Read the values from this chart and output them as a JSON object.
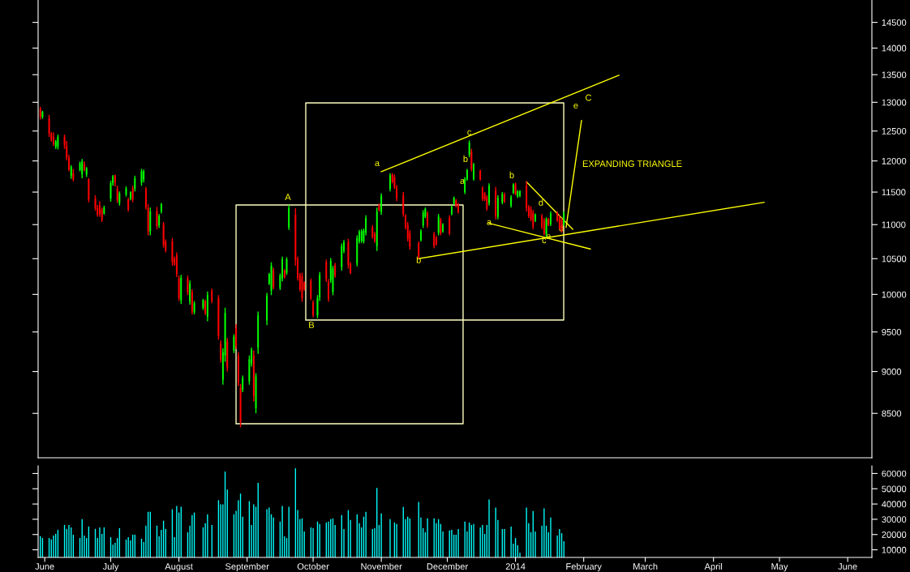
{
  "chart_data": [
    {
      "type": "candlestick",
      "log": true,
      "tick_labels": "y",
      "grid": false,
      "xlim": [
        "2013-05-29",
        "2014-06-12"
      ],
      "ylim": [
        8000,
        14950
      ],
      "yticks": [
        8500,
        9000,
        9500,
        10000,
        10500,
        11000,
        11500,
        12000,
        12500,
        13000,
        13500,
        14000,
        14500
      ],
      "x": [
        "2013-05-30",
        "2013-05-31",
        "2013-06-03",
        "2013-06-04",
        "2013-06-05",
        "2013-06-06",
        "2013-06-07",
        "2013-06-10",
        "2013-06-11",
        "2013-06-12",
        "2013-06-13",
        "2013-06-14",
        "2013-06-17",
        "2013-06-18",
        "2013-06-19",
        "2013-06-20",
        "2013-06-21",
        "2013-06-24",
        "2013-06-25",
        "2013-06-26",
        "2013-06-27",
        "2013-06-28",
        "2013-07-01",
        "2013-07-02",
        "2013-07-03",
        "2013-07-04",
        "2013-07-05",
        "2013-07-08",
        "2013-07-09",
        "2013-07-10",
        "2013-07-11",
        "2013-07-12",
        "2013-07-15",
        "2013-07-16",
        "2013-07-17",
        "2013-07-18",
        "2013-07-19",
        "2013-07-22",
        "2013-07-23",
        "2013-07-24",
        "2013-07-25",
        "2013-07-26",
        "2013-07-29",
        "2013-07-30",
        "2013-07-31",
        "2013-08-01",
        "2013-08-02",
        "2013-08-05",
        "2013-08-06",
        "2013-08-07",
        "2013-08-08",
        "2013-08-12",
        "2013-08-13",
        "2013-08-14",
        "2013-08-16",
        "2013-08-19",
        "2013-08-20",
        "2013-08-21",
        "2013-08-22",
        "2013-08-23",
        "2013-08-26",
        "2013-08-27",
        "2013-08-28",
        "2013-08-29",
        "2013-08-30",
        "2013-09-02",
        "2013-09-03",
        "2013-09-04",
        "2013-09-05",
        "2013-09-06",
        "2013-09-10",
        "2013-09-11",
        "2013-09-12",
        "2013-09-13",
        "2013-09-16",
        "2013-09-17",
        "2013-09-18",
        "2013-09-19",
        "2013-09-20",
        "2013-09-23",
        "2013-09-24",
        "2013-09-25",
        "2013-09-26",
        "2013-09-27",
        "2013-09-30",
        "2013-10-01",
        "2013-10-03",
        "2013-10-04",
        "2013-10-07",
        "2013-10-08",
        "2013-10-09",
        "2013-10-10",
        "2013-10-11",
        "2013-10-14",
        "2013-10-15",
        "2013-10-17",
        "2013-10-18",
        "2013-10-21",
        "2013-10-22",
        "2013-10-23",
        "2013-10-24",
        "2013-10-25",
        "2013-10-28",
        "2013-10-29",
        "2013-10-30",
        "2013-10-31",
        "2013-11-01",
        "2013-11-05",
        "2013-11-06",
        "2013-11-07",
        "2013-11-08",
        "2013-11-11",
        "2013-11-12",
        "2013-11-13",
        "2013-11-14",
        "2013-11-18",
        "2013-11-19",
        "2013-11-20",
        "2013-11-21",
        "2013-11-22",
        "2013-11-25",
        "2013-11-26",
        "2013-11-27",
        "2013-11-28",
        "2013-11-29",
        "2013-12-02",
        "2013-12-03",
        "2013-12-04",
        "2013-12-05",
        "2013-12-06",
        "2013-12-09",
        "2013-12-10",
        "2013-12-11",
        "2013-12-12",
        "2013-12-13",
        "2013-12-16",
        "2013-12-17",
        "2013-12-18",
        "2013-12-19",
        "2013-12-20",
        "2013-12-23",
        "2013-12-24",
        "2013-12-26",
        "2013-12-27",
        "2013-12-30",
        "2013-12-31",
        "2014-01-01",
        "2014-01-02",
        "2014-01-03",
        "2014-01-06",
        "2014-01-07",
        "2014-01-08",
        "2014-01-09",
        "2014-01-10",
        "2014-01-13",
        "2014-01-14",
        "2014-01-15",
        "2014-01-16",
        "2014-01-17",
        "2014-01-20",
        "2014-01-21",
        "2014-01-22",
        "2014-01-23"
      ],
      "ohlc": [
        [
          12880,
          12920,
          12700,
          12750
        ],
        [
          12740,
          12850,
          12710,
          12830
        ],
        [
          12720,
          12780,
          12400,
          12460
        ],
        [
          12460,
          12480,
          12320,
          12350
        ],
        [
          12400,
          12480,
          12250,
          12280
        ],
        [
          12230,
          12350,
          12200,
          12320
        ],
        [
          12240,
          12440,
          12190,
          12400
        ],
        [
          12400,
          12440,
          12200,
          12260
        ],
        [
          12250,
          12330,
          12010,
          12050
        ],
        [
          12050,
          12100,
          11830,
          11860
        ],
        [
          11760,
          11930,
          11710,
          11900
        ],
        [
          11800,
          11870,
          11670,
          11700
        ],
        [
          11850,
          11990,
          11830,
          11960
        ],
        [
          11780,
          12030,
          11720,
          11990
        ],
        [
          11950,
          11990,
          11830,
          11860
        ],
        [
          11780,
          11900,
          11740,
          11880
        ],
        [
          11700,
          11720,
          11340,
          11380
        ],
        [
          11400,
          11450,
          11210,
          11250
        ],
        [
          11250,
          11300,
          11120,
          11150
        ],
        [
          11300,
          11360,
          11120,
          11160
        ],
        [
          11230,
          11260,
          11040,
          11070
        ],
        [
          11170,
          11290,
          11150,
          11260
        ],
        [
          11400,
          11680,
          11350,
          11640
        ],
        [
          11640,
          11770,
          11600,
          11750
        ],
        [
          11760,
          11780,
          11590,
          11650
        ],
        [
          11550,
          11600,
          11330,
          11370
        ],
        [
          11330,
          11510,
          11290,
          11480
        ],
        [
          11460,
          11590,
          11430,
          11560
        ],
        [
          11380,
          11410,
          11200,
          11230
        ],
        [
          11400,
          11510,
          11370,
          11500
        ],
        [
          11560,
          11600,
          11340,
          11380
        ],
        [
          11550,
          11760,
          11510,
          11720
        ],
        [
          11650,
          11870,
          11600,
          11830
        ],
        [
          11700,
          11860,
          11650,
          11830
        ],
        [
          11550,
          11580,
          11230,
          11260
        ],
        [
          11250,
          11310,
          10840,
          10900
        ],
        [
          10900,
          11260,
          10840,
          11200
        ],
        [
          11200,
          11270,
          10930,
          10980
        ],
        [
          10990,
          11160,
          10950,
          11130
        ],
        [
          11200,
          11330,
          11170,
          11310
        ],
        [
          11000,
          11040,
          10660,
          10700
        ],
        [
          10750,
          10780,
          10590,
          10620
        ],
        [
          10750,
          10800,
          10400,
          10450
        ],
        [
          10500,
          10530,
          10400,
          10420
        ],
        [
          10550,
          10590,
          10240,
          10280
        ],
        [
          10220,
          10260,
          9910,
          9950
        ],
        [
          9920,
          10270,
          9870,
          10230
        ],
        [
          10220,
          10260,
          9990,
          10030
        ],
        [
          9900,
          10190,
          9860,
          10150
        ],
        [
          10030,
          10070,
          9730,
          9770
        ],
        [
          9760,
          9910,
          9730,
          9880
        ],
        [
          9820,
          9940,
          9790,
          9920
        ],
        [
          9900,
          9930,
          9720,
          9750
        ],
        [
          9700,
          10040,
          9640,
          9990
        ],
        [
          10050,
          10080,
          9880,
          9910
        ],
        [
          9950,
          9990,
          9400,
          9450
        ],
        [
          9350,
          9390,
          9110,
          9150
        ],
        [
          8900,
          9290,
          8840,
          9240
        ],
        [
          9200,
          9820,
          9120,
          9750
        ],
        [
          9380,
          9420,
          9000,
          9050
        ],
        [
          9260,
          9470,
          9230,
          9440
        ],
        [
          9550,
          9600,
          9280,
          9320
        ],
        [
          9200,
          9240,
          8820,
          8860
        ],
        [
          8800,
          8850,
          8340,
          8400
        ],
        [
          8780,
          8950,
          8750,
          8920
        ],
        [
          8880,
          9200,
          8840,
          9150
        ],
        [
          9100,
          9300,
          9060,
          9270
        ],
        [
          9200,
          9260,
          8640,
          8700
        ],
        [
          8560,
          8980,
          8500,
          8940
        ],
        [
          9300,
          9770,
          9220,
          9720
        ],
        [
          9650,
          10020,
          9590,
          9980
        ],
        [
          10150,
          10300,
          10130,
          10280
        ],
        [
          10050,
          10450,
          9990,
          10400
        ],
        [
          10330,
          10370,
          10070,
          10100
        ],
        [
          10090,
          10290,
          10060,
          10260
        ],
        [
          10220,
          10530,
          10180,
          10490
        ],
        [
          10330,
          10350,
          10220,
          10240
        ],
        [
          10300,
          10520,
          10270,
          10490
        ],
        [
          10960,
          11300,
          10920,
          11250
        ],
        [
          11150,
          11250,
          10400,
          10480
        ],
        [
          10490,
          10530,
          10190,
          10230
        ],
        [
          10270,
          10300,
          10040,
          10070
        ],
        [
          10250,
          10300,
          9900,
          9950
        ],
        [
          10160,
          10180,
          10050,
          10070
        ],
        [
          10190,
          10220,
          9920,
          9950
        ],
        [
          9890,
          9920,
          9690,
          9720
        ],
        [
          9720,
          9990,
          9680,
          9950
        ],
        [
          9960,
          10310,
          9910,
          10270
        ],
        [
          10450,
          10490,
          10170,
          10210
        ],
        [
          10170,
          10210,
          9900,
          9940
        ],
        [
          10200,
          10510,
          10160,
          10470
        ],
        [
          10030,
          10400,
          9990,
          10360
        ],
        [
          10410,
          10440,
          10230,
          10260
        ],
        [
          10380,
          10720,
          10330,
          10680
        ],
        [
          10610,
          10770,
          10580,
          10740
        ],
        [
          10740,
          10790,
          10360,
          10410
        ],
        [
          10420,
          10450,
          10280,
          10300
        ],
        [
          10430,
          10840,
          10390,
          10800
        ],
        [
          10750,
          10920,
          10720,
          10890
        ],
        [
          10760,
          10930,
          10730,
          10900
        ],
        [
          10750,
          10940,
          10720,
          10910
        ],
        [
          10880,
          11140,
          10840,
          11100
        ],
        [
          10960,
          10990,
          10790,
          10820
        ],
        [
          10860,
          10890,
          10730,
          10760
        ],
        [
          10680,
          11260,
          10610,
          11200
        ],
        [
          11300,
          11320,
          11200,
          11220
        ],
        [
          11190,
          11480,
          11150,
          11440
        ],
        [
          11550,
          11800,
          11510,
          11760
        ],
        [
          11780,
          11800,
          11640,
          11660
        ],
        [
          11740,
          11780,
          11550,
          11580
        ],
        [
          11570,
          11610,
          11360,
          11400
        ],
        [
          11450,
          11500,
          11120,
          11160
        ],
        [
          11130,
          11160,
          10930,
          10960
        ],
        [
          11000,
          11040,
          10750,
          10790
        ],
        [
          10880,
          10920,
          10630,
          10670
        ],
        [
          10720,
          10750,
          10500,
          10530
        ],
        [
          10770,
          10930,
          10750,
          10900
        ],
        [
          10990,
          11220,
          10950,
          11180
        ],
        [
          11120,
          11260,
          11100,
          11240
        ],
        [
          11170,
          11200,
          10950,
          10990
        ],
        [
          10860,
          10890,
          10650,
          10680
        ],
        [
          10800,
          10830,
          10690,
          10710
        ],
        [
          10880,
          11160,
          10840,
          11120
        ],
        [
          11070,
          11100,
          10840,
          10870
        ],
        [
          10900,
          11020,
          10880,
          11000
        ],
        [
          11100,
          11140,
          10840,
          10870
        ],
        [
          11160,
          11290,
          11140,
          11270
        ],
        [
          11320,
          11430,
          11300,
          11410
        ],
        [
          11370,
          11390,
          11260,
          11280
        ],
        [
          11300,
          11330,
          11170,
          11190
        ],
        [
          11500,
          11740,
          11470,
          11710
        ],
        [
          11700,
          11870,
          11680,
          11850
        ],
        [
          12100,
          12340,
          12060,
          12300
        ],
        [
          12150,
          12200,
          11830,
          11870
        ],
        [
          11710,
          11970,
          11680,
          11940
        ],
        [
          11840,
          11860,
          11680,
          11700
        ],
        [
          11560,
          11590,
          11360,
          11390
        ],
        [
          11480,
          11500,
          11360,
          11380
        ],
        [
          11420,
          11450,
          11210,
          11240
        ],
        [
          11330,
          11640,
          11290,
          11600
        ],
        [
          11520,
          11580,
          11080,
          11130
        ],
        [
          11120,
          11450,
          11080,
          11410
        ],
        [
          11340,
          11500,
          11310,
          11470
        ],
        [
          11460,
          11490,
          11330,
          11350
        ],
        [
          11290,
          11450,
          11260,
          11420
        ],
        [
          11490,
          11640,
          11470,
          11620
        ],
        [
          11620,
          11650,
          11450,
          11470
        ],
        [
          11430,
          11530,
          11410,
          11510
        ],
        [
          11440,
          11530,
          11420,
          11510
        ],
        [
          11600,
          11670,
          11200,
          11250
        ],
        [
          11270,
          11300,
          11100,
          11130
        ],
        [
          11240,
          11280,
          11050,
          11080
        ],
        [
          11180,
          11220,
          10930,
          10970
        ],
        [
          11060,
          11170,
          11040,
          11150
        ],
        [
          11130,
          11160,
          10930,
          10960
        ],
        [
          11060,
          11100,
          10840,
          10870
        ],
        [
          10860,
          11110,
          10820,
          11080
        ],
        [
          11080,
          11100,
          10980,
          11000
        ],
        [
          11010,
          11200,
          10980,
          11170
        ],
        [
          11170,
          11200,
          11040,
          11060
        ],
        [
          11110,
          11140,
          10920,
          10950
        ],
        [
          11070,
          11100,
          10880,
          10910
        ],
        [
          11010,
          11200,
          10980,
          11170
        ]
      ],
      "colors": [
        "#ff0000",
        "#00ff00",
        "#ff0000",
        "#ff0000",
        "#ff0000",
        "#00ff00",
        "#00ff00",
        "#ff0000",
        "#ff0000",
        "#ff0000",
        "#00ff00",
        "#ff0000",
        "#00ff00",
        "#00ff00",
        "#ff0000",
        "#00ff00",
        "#ff0000",
        "#ff0000",
        "#ff0000",
        "#ff0000",
        "#ff0000",
        "#00ff00",
        "#00ff00",
        "#00ff00",
        "#ff0000",
        "#ff0000",
        "#00ff00",
        "#00ff00",
        "#ff0000",
        "#00ff00",
        "#ff0000",
        "#00ff00",
        "#00ff00",
        "#00ff00",
        "#ff0000",
        "#ff0000",
        "#00ff00",
        "#ff0000",
        "#00ff00",
        "#00ff00",
        "#ff0000",
        "#ff0000",
        "#ff0000",
        "#ff0000",
        "#ff0000",
        "#ff0000",
        "#00ff00",
        "#ff0000",
        "#00ff00",
        "#ff0000",
        "#00ff00",
        "#00ff00",
        "#ff0000",
        "#00ff00",
        "#ff0000",
        "#ff0000",
        "#ff0000",
        "#00ff00",
        "#00ff00",
        "#ff0000",
        "#00ff00",
        "#ff0000",
        "#ff0000",
        "#ff0000",
        "#00ff00",
        "#00ff00",
        "#00ff00",
        "#ff0000",
        "#00ff00",
        "#00ff00",
        "#00ff00",
        "#00ff00",
        "#00ff00",
        "#ff0000",
        "#00ff00",
        "#00ff00",
        "#ff0000",
        "#00ff00",
        "#00ff00",
        "#ff0000",
        "#ff0000",
        "#ff0000",
        "#ff0000",
        "#ff0000",
        "#ff0000",
        "#ff0000",
        "#00ff00",
        "#00ff00",
        "#ff0000",
        "#ff0000",
        "#00ff00",
        "#00ff00",
        "#ff0000",
        "#00ff00",
        "#00ff00",
        "#ff0000",
        "#ff0000",
        "#00ff00",
        "#00ff00",
        "#00ff00",
        "#00ff00",
        "#00ff00",
        "#ff0000",
        "#ff0000",
        "#00ff00",
        "#ff0000",
        "#00ff00",
        "#00ff00",
        "#ff0000",
        "#ff0000",
        "#ff0000",
        "#ff0000",
        "#ff0000",
        "#ff0000",
        "#ff0000",
        "#ff0000",
        "#00ff00",
        "#00ff00",
        "#00ff00",
        "#ff0000",
        "#ff0000",
        "#ff0000",
        "#00ff00",
        "#ff0000",
        "#00ff00",
        "#ff0000",
        "#00ff00",
        "#00ff00",
        "#ff0000",
        "#ff0000",
        "#00ff00",
        "#00ff00",
        "#00ff00",
        "#ff0000",
        "#00ff00",
        "#ff0000",
        "#ff0000",
        "#ff0000",
        "#ff0000",
        "#00ff00",
        "#ff0000",
        "#00ff00",
        "#00ff00",
        "#ff0000",
        "#00ff00",
        "#00ff00",
        "#ff0000",
        "#00ff00",
        "#00ff00",
        "#ff0000",
        "#ff0000",
        "#ff0000",
        "#ff0000",
        "#00ff00",
        "#ff0000",
        "#ff0000",
        "#00ff00",
        "#ff0000",
        "#00ff00",
        "#ff0000",
        "#ff0000",
        "#ff0000",
        "#00ff00"
      ],
      "series": [
        {
          "type": "line",
          "color": "#ffff00",
          "x": [
            "2013-11-01",
            "2014-02-17"
          ],
          "values": [
            11825,
            13490
          ]
        },
        {
          "type": "line",
          "color": "#ffff00",
          "x": [
            "2013-11-18",
            "2014-04-24"
          ],
          "values": [
            10500,
            11340
          ]
        },
        {
          "type": "line",
          "color": "#ffff00",
          "x": [
            "2014-01-06",
            "2014-01-27"
          ],
          "values": [
            11660,
            10930
          ]
        },
        {
          "type": "line",
          "color": "#ffff00",
          "x": [
            "2013-12-20",
            "2014-02-04"
          ],
          "values": [
            11020,
            10640
          ]
        },
        {
          "type": "line",
          "color": "#ffff00",
          "x": [
            "2014-01-24",
            "2014-01-31"
          ],
          "values": [
            10960,
            12680
          ]
        }
      ],
      "annotations": [
        "A",
        "B",
        "a",
        {
          "text": "b",
          "x": "2013-11-18",
          "y": 10470
        },
        {
          "text": "c",
          "x": "2013-12-11",
          "y": 12470
        },
        "b",
        "a",
        {
          "text": "a",
          "x": "2013-12-20",
          "y": 11030
        },
        "b",
        {
          "text": "c",
          "x": "2014-01-14",
          "y": 10760
        },
        "d",
        "e",
        "d",
        "e",
        "C",
        "EXPANDING TRIANGLE"
      ]
    },
    {
      "type": "bar",
      "color": "#00ffff",
      "grid": false,
      "xlim": [
        "2013-05-29",
        "2014-06-12"
      ],
      "ylim": [
        5000,
        65000
      ],
      "yticks": [
        10000,
        20000,
        30000,
        40000,
        50000,
        60000
      ],
      "xticks": [
        {
          "value": "2013-06-01",
          "label": "June"
        },
        {
          "value": "2013-07-01",
          "label": "July"
        },
        {
          "value": "2013-08-01",
          "label": "August"
        },
        {
          "value": "2013-09-01",
          "label": "September"
        },
        {
          "value": "2013-10-01",
          "label": "October"
        },
        {
          "value": "2013-11-01",
          "label": "November"
        },
        {
          "value": "2013-12-01",
          "label": "December"
        },
        {
          "value": "2014-01-01",
          "label": "2014"
        },
        {
          "value": "2014-02-01",
          "label": "February"
        },
        {
          "value": "2014-03-01",
          "label": "March"
        },
        {
          "value": "2014-04-01",
          "label": "April"
        },
        {
          "value": "2014-05-01",
          "label": "May"
        },
        {
          "value": "2014-06-01",
          "label": "June"
        }
      ],
      "x": [
        "2013-05-30",
        "2013-05-31",
        "2013-06-03",
        "2013-06-04",
        "2013-06-05",
        "2013-06-06",
        "2013-06-07",
        "2013-06-10",
        "2013-06-11",
        "2013-06-12",
        "2013-06-13",
        "2013-06-14",
        "2013-06-17",
        "2013-06-18",
        "2013-06-19",
        "2013-06-20",
        "2013-06-21",
        "2013-06-24",
        "2013-06-25",
        "2013-06-26",
        "2013-06-27",
        "2013-06-28",
        "2013-07-01",
        "2013-07-02",
        "2013-07-03",
        "2013-07-04",
        "2013-07-05",
        "2013-07-08",
        "2013-07-09",
        "2013-07-10",
        "2013-07-11",
        "2013-07-12",
        "2013-07-15",
        "2013-07-16",
        "2013-07-17",
        "2013-07-18",
        "2013-07-19",
        "2013-07-22",
        "2013-07-23",
        "2013-07-24",
        "2013-07-25",
        "2013-07-26",
        "2013-07-29",
        "2013-07-30",
        "2013-07-31",
        "2013-08-01",
        "2013-08-02",
        "2013-08-05",
        "2013-08-06",
        "2013-08-07",
        "2013-08-08",
        "2013-08-12",
        "2013-08-13",
        "2013-08-14",
        "2013-08-16",
        "2013-08-19",
        "2013-08-20",
        "2013-08-21",
        "2013-08-22",
        "2013-08-23",
        "2013-08-26",
        "2013-08-27",
        "2013-08-28",
        "2013-08-29",
        "2013-08-30",
        "2013-09-02",
        "2013-09-03",
        "2013-09-04",
        "2013-09-05",
        "2013-09-06",
        "2013-09-10",
        "2013-09-11",
        "2013-09-12",
        "2013-09-13",
        "2013-09-16",
        "2013-09-17",
        "2013-09-18",
        "2013-09-19",
        "2013-09-20",
        "2013-09-23",
        "2013-09-24",
        "2013-09-25",
        "2013-09-26",
        "2013-09-27",
        "2013-09-30",
        "2013-10-01",
        "2013-10-03",
        "2013-10-04",
        "2013-10-07",
        "2013-10-08",
        "2013-10-09",
        "2013-10-10",
        "2013-10-11",
        "2013-10-14",
        "2013-10-15",
        "2013-10-17",
        "2013-10-18",
        "2013-10-21",
        "2013-10-22",
        "2013-10-23",
        "2013-10-24",
        "2013-10-25",
        "2013-10-28",
        "2013-10-29",
        "2013-10-30",
        "2013-10-31",
        "2013-11-01",
        "2013-11-05",
        "2013-11-06",
        "2013-11-07",
        "2013-11-08",
        "2013-11-11",
        "2013-11-12",
        "2013-11-13",
        "2013-11-14",
        "2013-11-18",
        "2013-11-19",
        "2013-11-20",
        "2013-11-21",
        "2013-11-22",
        "2013-11-25",
        "2013-11-26",
        "2013-11-27",
        "2013-11-28",
        "2013-11-29",
        "2013-12-02",
        "2013-12-03",
        "2013-12-04",
        "2013-12-05",
        "2013-12-06",
        "2013-12-09",
        "2013-12-10",
        "2013-12-11",
        "2013-12-12",
        "2013-12-13",
        "2013-12-16",
        "2013-12-17",
        "2013-12-18",
        "2013-12-19",
        "2013-12-20",
        "2013-12-23",
        "2013-12-24",
        "2013-12-26",
        "2013-12-27",
        "2013-12-30",
        "2013-12-31",
        "2014-01-01",
        "2014-01-02",
        "2014-01-03",
        "2014-01-06",
        "2014-01-07",
        "2014-01-08",
        "2014-01-09",
        "2014-01-10",
        "2014-01-13",
        "2014-01-14",
        "2014-01-15",
        "2014-01-16",
        "2014-01-17",
        "2014-01-20",
        "2014-01-21",
        "2014-01-22",
        "2014-01-23"
      ],
      "values": [
        19000,
        17700,
        17700,
        16800,
        19400,
        20400,
        23100,
        26300,
        23700,
        26300,
        24700,
        19900,
        17700,
        30100,
        19400,
        17700,
        25300,
        23700,
        17700,
        24700,
        20400,
        24700,
        18300,
        13400,
        14500,
        17700,
        24200,
        16700,
        18300,
        16100,
        19900,
        19900,
        17200,
        15100,
        25800,
        34900,
        34900,
        25800,
        18800,
        23100,
        29000,
        23700,
        36600,
        18300,
        38700,
        34400,
        38200,
        21500,
        25800,
        32800,
        34400,
        24700,
        27400,
        33300,
        26300,
        42500,
        39800,
        39800,
        61300,
        49500,
        33300,
        35500,
        42500,
        46800,
        31700,
        41900,
        26300,
        39800,
        38200,
        53800,
        36600,
        37600,
        33300,
        31200,
        28500,
        38700,
        18800,
        17700,
        38200,
        63400,
        36000,
        30100,
        30600,
        22000,
        24700,
        24200,
        28500,
        26900,
        27900,
        28500,
        30100,
        30600,
        26300,
        32800,
        23600,
        36000,
        29500,
        33300,
        27400,
        24700,
        31700,
        34900,
        23600,
        24200,
        50500,
        26300,
        33800,
        30100,
        null,
        27900,
        26900,
        38100,
        30100,
        31700,
        30600,
        41400,
        31100,
        24200,
        21500,
        30600,
        30600,
        27400,
        30100,
        26900,
        22000,
        22600,
        23100,
        19900,
        19900,
        23600,
        28500,
        22000,
        27900,
        26300,
        26900,
        24700,
        26300,
        20400,
        26300,
        43000,
        37600,
        29500,
        23600,
        23600,
        25200,
        14000,
        17700,
        12900,
        8100,
        37600,
        27400,
        21500,
        35400,
        22000,
        25800,
        37100,
        25800,
        21500,
        31100,
        19300,
        23600,
        20900,
        15600
      ]
    }
  ]
}
